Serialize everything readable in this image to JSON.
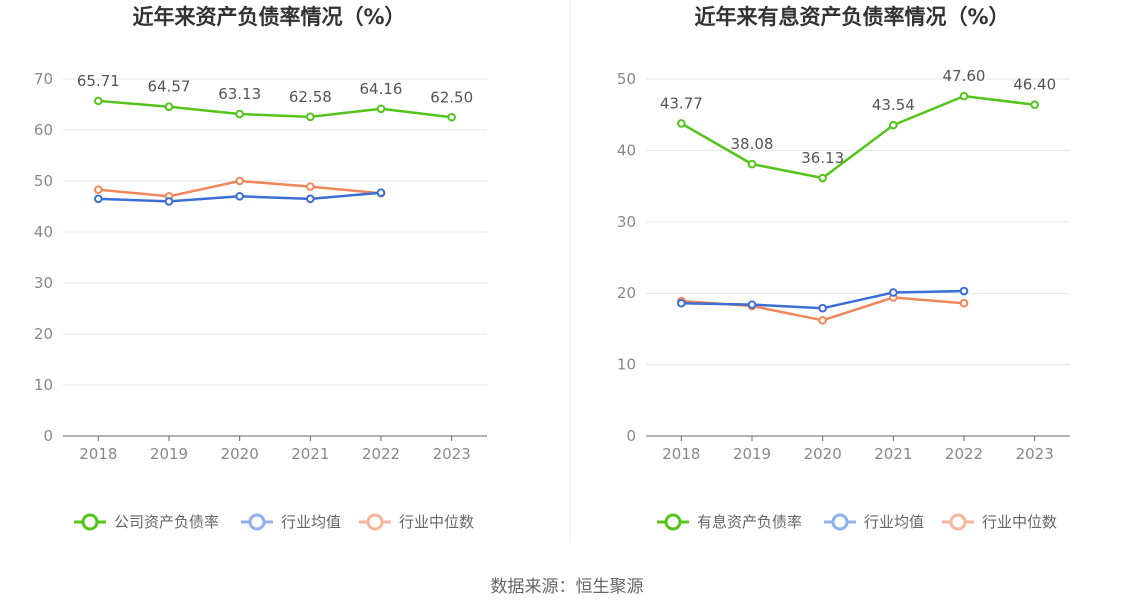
{
  "source": "数据来源：恒生聚源",
  "colors": {
    "company": "#52c41a",
    "avg": "#3b6fd6",
    "median": "#f0875a",
    "avgLegend": "#8fb0ee",
    "medianLegend": "#f7b59b"
  },
  "chart_data": [
    {
      "type": "line",
      "title": "近年来资产负债率情况（%）",
      "categories": [
        "2018",
        "2019",
        "2020",
        "2021",
        "2022",
        "2023"
      ],
      "ylim": [
        0,
        70
      ],
      "yticks": [
        0,
        10,
        20,
        30,
        40,
        50,
        60,
        70
      ],
      "legend_position": "bottom",
      "series": [
        {
          "name": "公司资产负债率",
          "color_key": "company",
          "legend_color_key": "company",
          "values": [
            65.71,
            64.57,
            63.13,
            62.58,
            64.16,
            62.5
          ],
          "labels": [
            "65.71",
            "64.57",
            "63.13",
            "62.58",
            "64.16",
            "62.50"
          ]
        },
        {
          "name": "行业均值",
          "color_key": "avg",
          "legend_color_key": "avgLegend",
          "values": [
            46.5,
            46.0,
            47.0,
            46.5,
            47.7,
            null
          ]
        },
        {
          "name": "行业中位数",
          "color_key": "median",
          "legend_color_key": "medianLegend",
          "values": [
            48.3,
            47.0,
            50.0,
            48.9,
            47.6,
            null
          ]
        }
      ]
    },
    {
      "type": "line",
      "title": "近年来有息资产负债率情况（%）",
      "categories": [
        "2018",
        "2019",
        "2020",
        "2021",
        "2022",
        "2023"
      ],
      "ylim": [
        0,
        50
      ],
      "yticks": [
        0,
        10,
        20,
        30,
        40,
        50
      ],
      "legend_position": "bottom",
      "series": [
        {
          "name": "有息资产负债率",
          "color_key": "company",
          "legend_color_key": "company",
          "values": [
            43.77,
            38.08,
            36.13,
            43.54,
            47.6,
            46.4
          ],
          "labels": [
            "43.77",
            "38.08",
            "36.13",
            "43.54",
            "47.60",
            "46.40"
          ]
        },
        {
          "name": "行业均值",
          "color_key": "avg",
          "legend_color_key": "avgLegend",
          "values": [
            18.6,
            18.4,
            17.9,
            20.1,
            20.3,
            null
          ]
        },
        {
          "name": "行业中位数",
          "color_key": "median",
          "legend_color_key": "medianLegend",
          "values": [
            18.9,
            18.2,
            16.2,
            19.4,
            18.6,
            null
          ]
        }
      ]
    }
  ]
}
